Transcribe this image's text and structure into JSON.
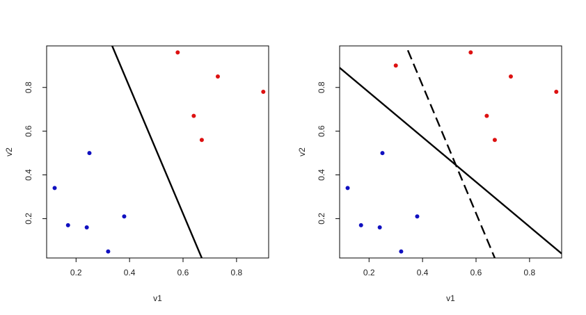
{
  "chart_data": [
    {
      "type": "scatter",
      "xlabel": "v1",
      "ylabel": "v2",
      "xlim": [
        0.09,
        0.92
      ],
      "ylim": [
        0.02,
        0.99
      ],
      "x_ticks": [
        0.2,
        0.4,
        0.6,
        0.8
      ],
      "y_ticks": [
        0.2,
        0.4,
        0.6,
        0.8
      ],
      "x_tick_labels": [
        "0.2",
        "0.4",
        "0.6",
        "0.8"
      ],
      "y_tick_labels": [
        "0.2",
        "0.4",
        "0.6",
        "0.8"
      ],
      "grid": false,
      "series": [
        {
          "color": "#1010c0",
          "points": [
            {
              "x": 0.12,
              "y": 0.34
            },
            {
              "x": 0.17,
              "y": 0.17
            },
            {
              "x": 0.24,
              "y": 0.16
            },
            {
              "x": 0.25,
              "y": 0.5
            },
            {
              "x": 0.32,
              "y": 0.05
            },
            {
              "x": 0.38,
              "y": 0.21
            }
          ]
        },
        {
          "color": "#dd1111",
          "points": [
            {
              "x": 0.58,
              "y": 0.96
            },
            {
              "x": 0.64,
              "y": 0.67
            },
            {
              "x": 0.67,
              "y": 0.56
            },
            {
              "x": 0.73,
              "y": 0.85
            },
            {
              "x": 0.9,
              "y": 0.78
            }
          ]
        }
      ],
      "lines": [
        {
          "style": "solid",
          "color": "#000000",
          "from": [
            0.335,
            0.99
          ],
          "to": [
            0.67,
            0.02
          ]
        }
      ]
    },
    {
      "type": "scatter",
      "xlabel": "v1",
      "ylabel": "v2",
      "xlim": [
        0.09,
        0.92
      ],
      "ylim": [
        0.02,
        0.99
      ],
      "x_ticks": [
        0.2,
        0.4,
        0.6,
        0.8
      ],
      "y_ticks": [
        0.2,
        0.4,
        0.6,
        0.8
      ],
      "x_tick_labels": [
        "0.2",
        "0.4",
        "0.6",
        "0.8"
      ],
      "y_tick_labels": [
        "0.2",
        "0.4",
        "0.6",
        "0.8"
      ],
      "grid": false,
      "series": [
        {
          "color": "#1010c0",
          "points": [
            {
              "x": 0.12,
              "y": 0.34
            },
            {
              "x": 0.17,
              "y": 0.17
            },
            {
              "x": 0.24,
              "y": 0.16
            },
            {
              "x": 0.25,
              "y": 0.5
            },
            {
              "x": 0.32,
              "y": 0.05
            },
            {
              "x": 0.38,
              "y": 0.21
            }
          ]
        },
        {
          "color": "#dd1111",
          "points": [
            {
              "x": 0.3,
              "y": 0.9
            },
            {
              "x": 0.58,
              "y": 0.96
            },
            {
              "x": 0.64,
              "y": 0.67
            },
            {
              "x": 0.67,
              "y": 0.56
            },
            {
              "x": 0.73,
              "y": 0.85
            },
            {
              "x": 0.9,
              "y": 0.78
            }
          ]
        }
      ],
      "lines": [
        {
          "style": "solid",
          "color": "#000000",
          "from": [
            0.09,
            0.89
          ],
          "to": [
            0.92,
            0.04
          ]
        },
        {
          "style": "dashed",
          "color": "#000000",
          "from": [
            0.345,
            0.97
          ],
          "to": [
            0.67,
            0.02
          ]
        }
      ]
    }
  ]
}
